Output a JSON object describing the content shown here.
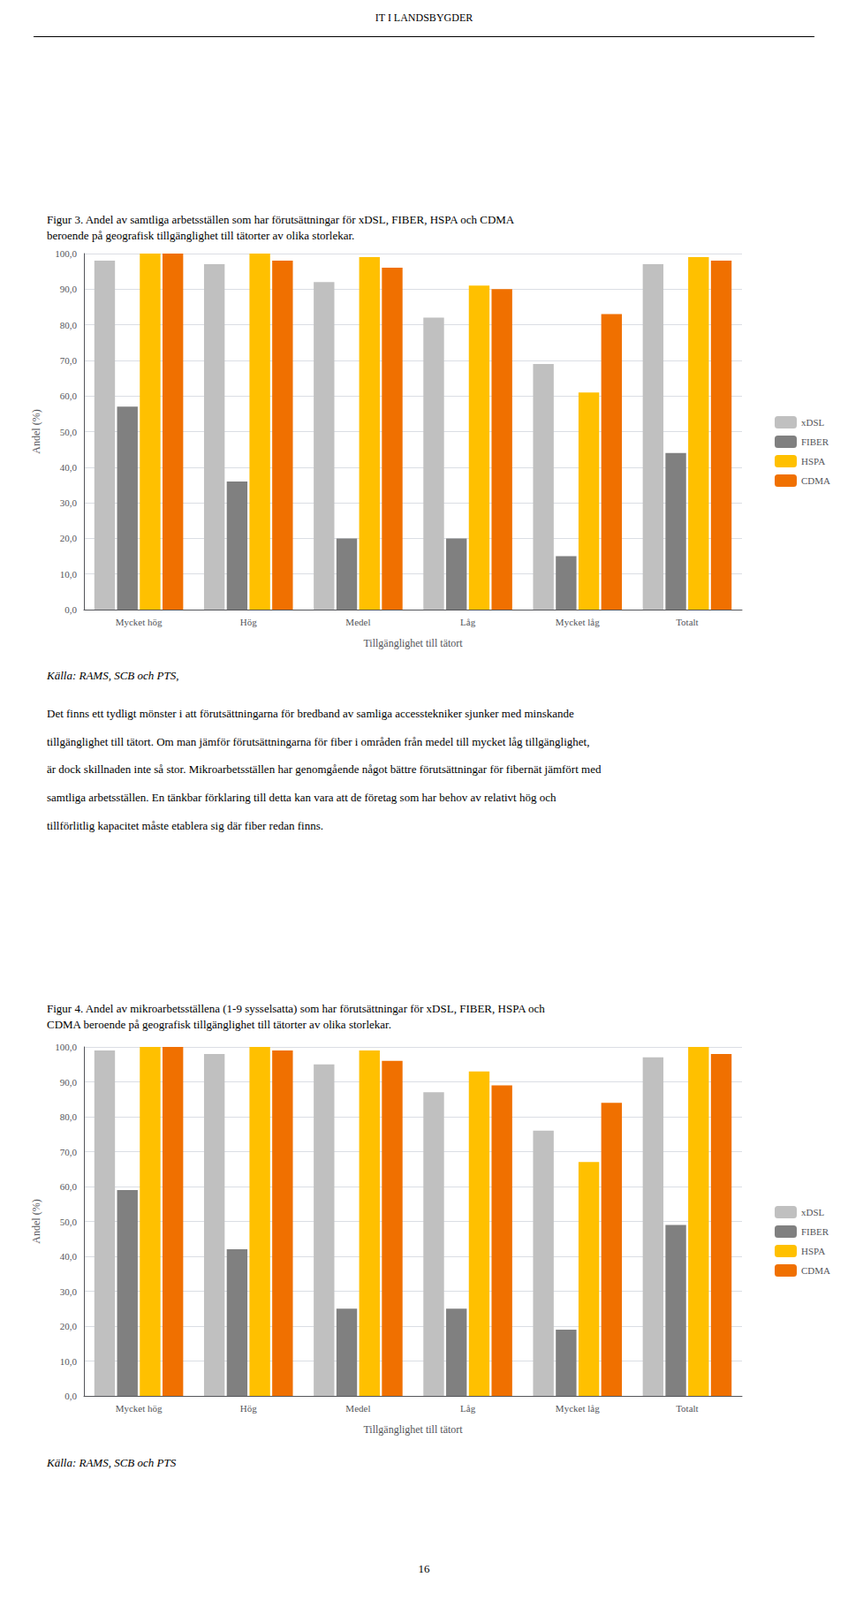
{
  "page_title": "IT I LANDSBYGDER",
  "body_text": [
    "Det finns ett tydligt mönster i att förutsättningarna för bredband av samliga accesstekniker sjunker med minskande",
    "tillgänglighet till tätort. Om man jämför förutsättningarna för fiber i områden från medel till mycket låg tillgänglighet,",
    "är dock skillnaden inte så stor. Mikroarbetsställen har genomgående något bättre förutsättningar för fibernät jämfört med",
    "samtliga arbetsställen. En tänkbar förklaring till detta kan vara att de företag som har behov av relativt hög och",
    "tillförlitlig kapacitet måste etablera sig där fiber redan finns."
  ],
  "page_number": "16",
  "chart_data": [
    {
      "type": "bar",
      "title": [
        "Figur 3.  Andel av samtliga arbetsställen som har förutsättningar för xDSL, FIBER, HSPA och CDMA",
        "beroende på geografisk tillgänglighet till tätorter av olika storlekar."
      ],
      "annotations": [
        "Källa: RAMS, SCB och PTS,"
      ],
      "xlabel": "Tillgänglighet till tätort",
      "ylabel": "Andel (%)",
      "categories": [
        "Mycket hög",
        "Hög",
        "Medel",
        "Låg",
        "Mycket låg",
        "Totalt"
      ],
      "series": [
        {
          "name": "xDSL",
          "color": "#c0c0c0",
          "values": [
            98.0,
            97.0,
            92.0,
            82.0,
            69.0,
            97.0
          ]
        },
        {
          "name": "FIBER",
          "color": "#808080",
          "values": [
            57.0,
            36.0,
            20.0,
            20.0,
            15.0,
            44.0
          ]
        },
        {
          "name": "HSPA",
          "color": "#ffc000",
          "values": [
            100.0,
            100.0,
            99.0,
            91.0,
            61.0,
            99.0
          ]
        },
        {
          "name": "CDMA",
          "color": "#f07000",
          "values": [
            100.0,
            98.0,
            96.0,
            90.0,
            83.0,
            98.0
          ]
        }
      ],
      "ylim": [
        0,
        100
      ],
      "yticks": [
        {
          "value": 0,
          "label": "0,0"
        },
        {
          "value": 10,
          "label": "10,0"
        },
        {
          "value": 20,
          "label": "20,0"
        },
        {
          "value": 30,
          "label": "30,0"
        },
        {
          "value": 40,
          "label": "40,0"
        },
        {
          "value": 50,
          "label": "50,0"
        },
        {
          "value": 60,
          "label": "60,0"
        },
        {
          "value": 70,
          "label": "70,0"
        },
        {
          "value": 80,
          "label": "80,0"
        },
        {
          "value": 90,
          "label": "90,0"
        },
        {
          "value": 100,
          "label": "100,0"
        }
      ],
      "grid": true,
      "legend": "right"
    },
    {
      "type": "bar",
      "title": [
        "Figur 4.  Andel av mikroarbetsställena (1-9 sysselsatta) som har förutsättningar för xDSL, FIBER, HSPA och",
        "CDMA beroende på geografisk tillgänglighet till tätorter av olika storlekar."
      ],
      "annotations": [
        "Källa: RAMS, SCB och PTS"
      ],
      "xlabel": "Tillgänglighet till tätort",
      "ylabel": "Andel (%)",
      "categories": [
        "Mycket hög",
        "Hög",
        "Medel",
        "Låg",
        "Mycket låg",
        "Totalt"
      ],
      "series": [
        {
          "name": "xDSL",
          "color": "#c0c0c0",
          "values": [
            99.0,
            98.0,
            95.0,
            87.0,
            76.0,
            97.0
          ]
        },
        {
          "name": "FIBER",
          "color": "#808080",
          "values": [
            59.0,
            42.0,
            25.0,
            25.0,
            19.0,
            49.0
          ]
        },
        {
          "name": "HSPA",
          "color": "#ffc000",
          "values": [
            100.0,
            100.0,
            99.0,
            93.0,
            67.0,
            100.0
          ]
        },
        {
          "name": "CDMA",
          "color": "#f07000",
          "values": [
            100.0,
            99.0,
            96.0,
            89.0,
            84.0,
            98.0
          ]
        }
      ],
      "ylim": [
        0,
        100
      ],
      "yticks": [
        {
          "value": 0,
          "label": "0,0"
        },
        {
          "value": 10,
          "label": "10,0"
        },
        {
          "value": 20,
          "label": "20,0"
        },
        {
          "value": 30,
          "label": "30,0"
        },
        {
          "value": 40,
          "label": "40,0"
        },
        {
          "value": 50,
          "label": "50,0"
        },
        {
          "value": 60,
          "label": "60,0"
        },
        {
          "value": 70,
          "label": "70,0"
        },
        {
          "value": 80,
          "label": "80,0"
        },
        {
          "value": 90,
          "label": "90,0"
        },
        {
          "value": 100,
          "label": "100,0"
        }
      ],
      "grid": true,
      "legend": "right"
    }
  ]
}
